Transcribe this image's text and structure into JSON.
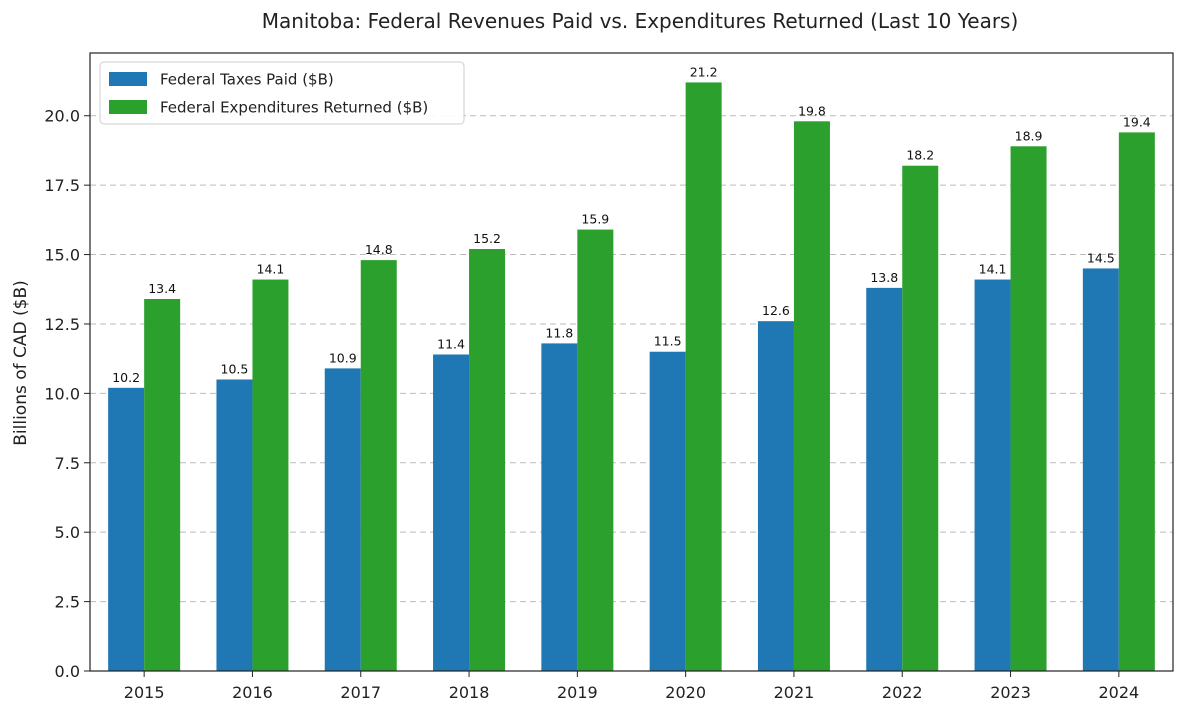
{
  "chart_data": {
    "type": "bar",
    "title": "Manitoba: Federal Revenues Paid vs. Expenditures Returned (Last 10 Years)",
    "xlabel": "",
    "ylabel": "Billions of CAD ($B)",
    "categories": [
      "2015",
      "2016",
      "2017",
      "2018",
      "2019",
      "2020",
      "2021",
      "2022",
      "2023",
      "2024"
    ],
    "series": [
      {
        "name": "Federal Taxes Paid ($B)",
        "color": "#1f77b4",
        "values": [
          10.2,
          10.5,
          10.9,
          11.4,
          11.8,
          11.5,
          12.6,
          13.8,
          14.1,
          14.5
        ],
        "labels": [
          "10.2",
          "10.5",
          "10.9",
          "11.4",
          "11.8",
          "11.5",
          "12.6",
          "13.8",
          "14.1",
          "14.5"
        ]
      },
      {
        "name": "Federal Expenditures Returned ($B)",
        "color": "#2ca02c",
        "values": [
          13.4,
          14.1,
          14.8,
          15.2,
          15.9,
          21.2,
          19.8,
          18.2,
          18.9,
          19.4
        ],
        "labels": [
          "13.4",
          "14.1",
          "14.8",
          "15.2",
          "15.9",
          "21.2",
          "19.8",
          "18.2",
          "18.9",
          "19.4"
        ]
      }
    ],
    "ylim": [
      0,
      22.26
    ],
    "yticks": [
      0,
      2.5,
      5,
      7.5,
      10,
      12.5,
      15,
      17.5,
      20
    ],
    "ytick_labels": [
      "0.0",
      "2.5",
      "5.0",
      "7.5",
      "10.0",
      "12.5",
      "15.0",
      "17.5",
      "20.0"
    ],
    "grid": "y-dashed",
    "legend_position": "top-left"
  }
}
